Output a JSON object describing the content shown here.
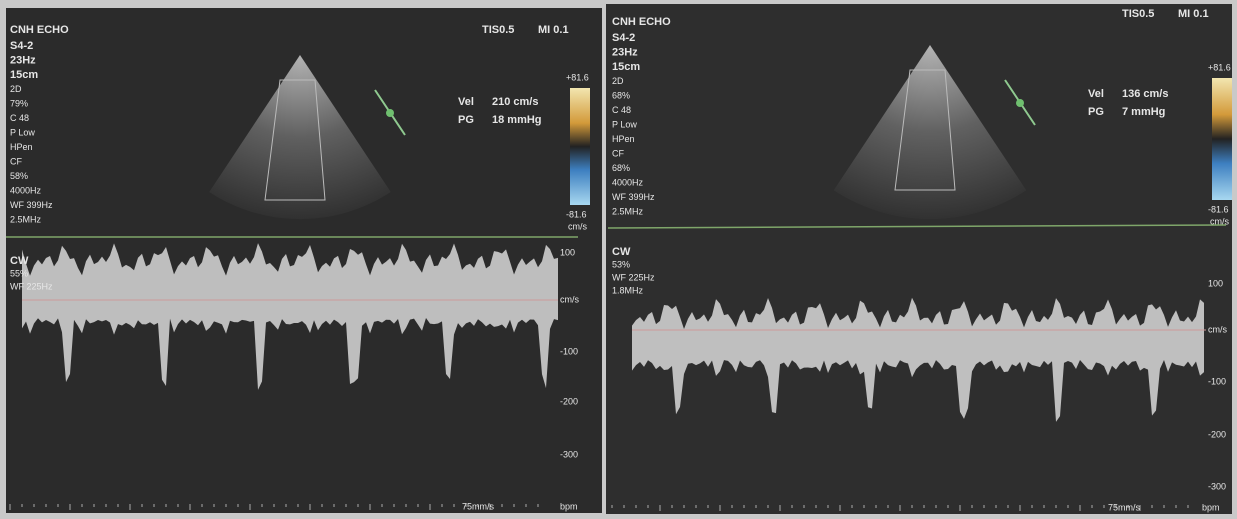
{
  "panels": [
    {
      "header": {
        "title": "CNH ECHO",
        "tis": "TIS0.5",
        "mi": "MI 0.1"
      },
      "settings": [
        "S4-2",
        "23Hz",
        "15cm",
        "2D",
        "79%",
        "C 48",
        "P Low",
        "HPen",
        "CF",
        "58%",
        "4000Hz",
        "WF 399Hz",
        "2.5MHz"
      ],
      "readout": {
        "vel_label": "Vel",
        "vel": "210 cm/s",
        "pg_label": "PG",
        "pg": "18 mmHg"
      },
      "color_bar": {
        "top": "+81.6",
        "bottom": "-81.6",
        "unit": "cm/s"
      },
      "cw": [
        "CW",
        "55%",
        "WF 225Hz"
      ],
      "scale": [
        "100",
        "cm/s",
        "-100",
        "-200",
        "-300"
      ],
      "sweep": "75mm/s",
      "bpm": "bpm"
    },
    {
      "header": {
        "title": "CNH ECHO",
        "tis": "TIS0.5",
        "mi": "MI 0.1"
      },
      "settings": [
        "S4-2",
        "23Hz",
        "15cm",
        "2D",
        "68%",
        "C 48",
        "P Low",
        "HPen",
        "CF",
        "68%",
        "4000Hz",
        "WF 399Hz",
        "2.5MHz"
      ],
      "readout": {
        "vel_label": "Vel",
        "vel": "136 cm/s",
        "pg_label": "PG",
        "pg": "7 mmHg"
      },
      "color_bar": {
        "top": "+81.6",
        "bottom": "-81.6",
        "unit": "cm/s"
      },
      "cw": [
        "CW",
        "53%",
        "WF 225Hz",
        "1.8MHz"
      ],
      "scale": [
        "100",
        "cm/s",
        "-100",
        "-200",
        "-300"
      ],
      "sweep": "75mm/s",
      "bpm": "bpm"
    }
  ]
}
